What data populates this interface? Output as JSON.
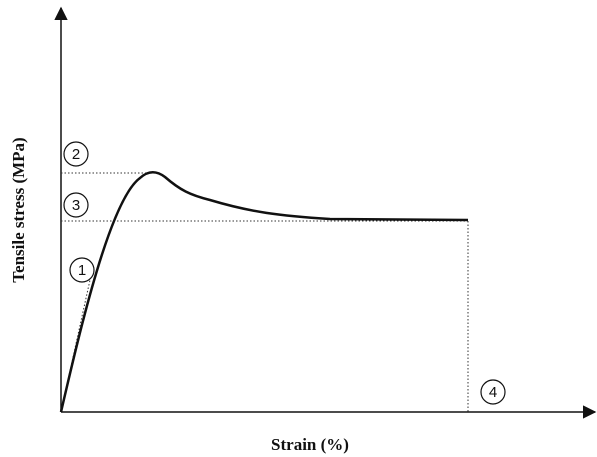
{
  "axes": {
    "x_label": "Strain (%)",
    "y_label": "Tensile stress (MPa)"
  },
  "markers": [
    {
      "label": "1"
    },
    {
      "label": "2"
    },
    {
      "label": "3"
    },
    {
      "label": "4"
    }
  ]
}
